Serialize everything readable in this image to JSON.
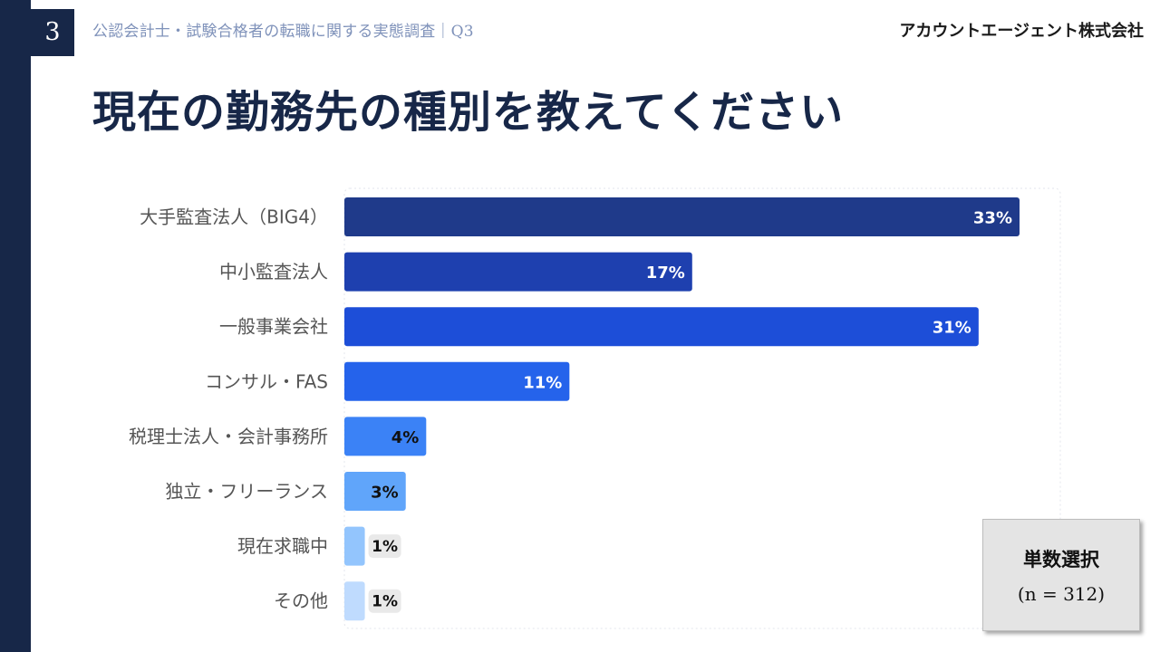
{
  "header": {
    "page_number": "3",
    "title": "公認会計士・試験合格者の転職に関する実態調査｜Q3",
    "company": "アカウントエージェント株式会社"
  },
  "main_title": "現在の勤務先の種別を教えてください",
  "note": {
    "type": "単数選択",
    "sample": "(n = 312)"
  },
  "colors": {
    "stripe": "#172748",
    "bar_colors": [
      "#1f3a8a",
      "#1e40af",
      "#1d4ed8",
      "#2563eb",
      "#3b82f6",
      "#60a5fa",
      "#93c5fd",
      "#bfdbfe"
    ]
  },
  "chart_data": {
    "type": "bar",
    "orientation": "horizontal",
    "categories": [
      "大手監査法人（BIG4）",
      "中小監査法人",
      "一般事業会社",
      "コンサル・FAS",
      "税理士法人・会計事務所",
      "独立・フリーランス",
      "現在求職中",
      "その他"
    ],
    "values": [
      33,
      17,
      31,
      11,
      4,
      3,
      1,
      1
    ],
    "value_labels": [
      "33%",
      "17%",
      "31%",
      "11%",
      "4%",
      "3%",
      "1%",
      "1%"
    ],
    "unit": "%",
    "xlim": [
      0,
      35
    ],
    "title": "",
    "xlabel": "",
    "ylabel": ""
  }
}
